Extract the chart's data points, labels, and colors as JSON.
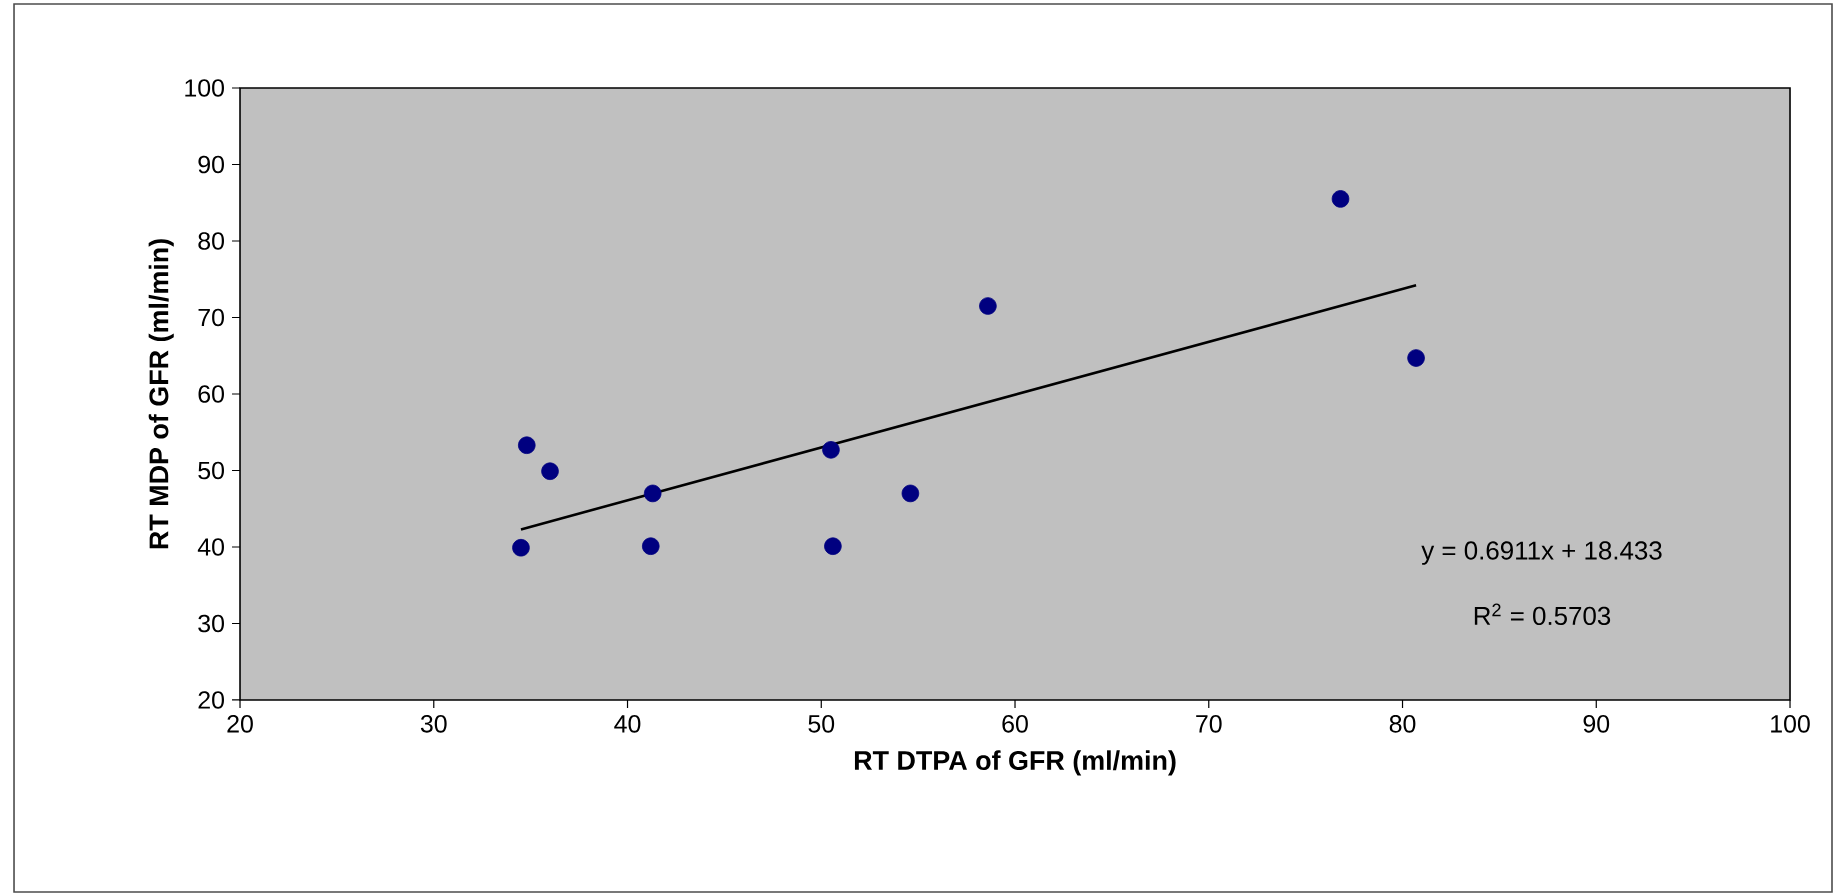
{
  "chart_data": {
    "type": "scatter",
    "xlabel": "RT DTPA of GFR (ml/min)",
    "ylabel": "RT MDP of GFR (ml/min)",
    "xlim": [
      20,
      100
    ],
    "ylim": [
      20,
      100
    ],
    "xticks": [
      20,
      30,
      40,
      50,
      60,
      70,
      80,
      90,
      100
    ],
    "yticks": [
      20,
      30,
      40,
      50,
      60,
      70,
      80,
      90,
      100
    ],
    "marker": "circle",
    "grid": false,
    "series": [
      {
        "color": "#000080",
        "x": [
          34.5,
          34.8,
          36.0,
          41.3,
          41.2,
          50.5,
          50.6,
          54.6,
          58.6,
          76.8,
          80.7
        ],
        "values": [
          39.9,
          53.3,
          49.9,
          47.0,
          40.1,
          52.7,
          40.1,
          47.0,
          71.5,
          85.5,
          64.7
        ]
      },
      {
        "type": "line",
        "color": "#000000",
        "marker": "none",
        "x": [
          34.5,
          80.7
        ],
        "values": [
          42.3,
          74.2
        ]
      }
    ],
    "annotations": [
      "y = 0.6911x + 18.433",
      "R$^{2}$ = 0.5703"
    ]
  }
}
